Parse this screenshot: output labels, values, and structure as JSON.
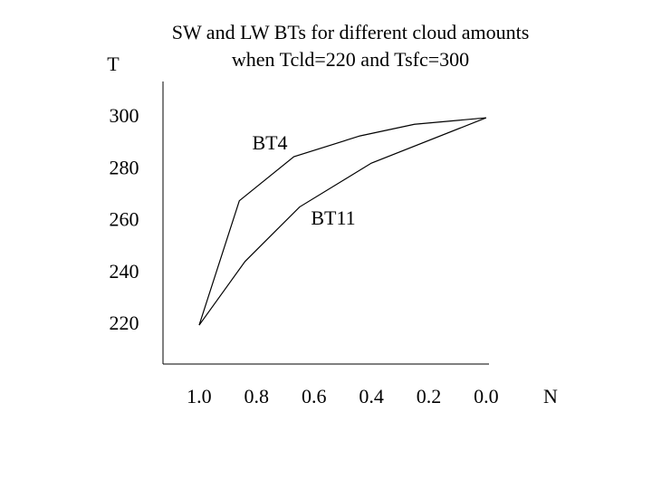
{
  "chart_data": {
    "type": "line",
    "title": [
      "SW and LW BTs for different cloud amounts",
      "when Tcld=220 and Tsfc=300"
    ],
    "x_label": "N",
    "y_label": "T",
    "xlim": [
      1.126,
      -0.01
    ],
    "ylim": [
      205,
      314
    ],
    "xticks": [
      {
        "value": 1,
        "label": "1.0"
      },
      0.8,
      0.6,
      0.4,
      0.2,
      {
        "value": 0,
        "label": "0.0"
      }
    ],
    "yticks": [
      220,
      240,
      260,
      280,
      300
    ],
    "grid": false,
    "series": [
      {
        "name": "BT4",
        "color": "#000000",
        "x": [
          1.0,
          0.86,
          0.67,
          0.44,
          0.25,
          0.0
        ],
        "values": [
          220,
          268,
          285,
          293,
          297.5,
          300
        ]
      },
      {
        "name": "BT11",
        "color": "#000000",
        "x": [
          1.0,
          0.84,
          0.65,
          0.4,
          0.0
        ],
        "values": [
          220,
          244.6,
          265.6,
          282.5,
          300
        ]
      }
    ]
  }
}
